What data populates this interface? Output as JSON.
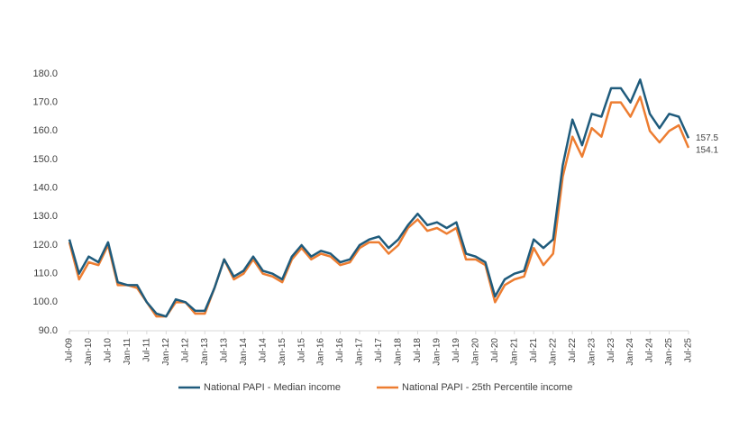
{
  "chart_data": {
    "type": "line",
    "categories": [
      "Jul-09",
      null,
      "Jan-10",
      null,
      "Jul-10",
      null,
      "Jan-11",
      null,
      "Jul-11",
      null,
      "Jan-12",
      null,
      "Jul-12",
      null,
      "Jan-13",
      null,
      "Jul-13",
      null,
      "Jan-14",
      null,
      "Jul-14",
      null,
      "Jan-15",
      null,
      "Jul-15",
      null,
      "Jan-16",
      null,
      "Jul-16",
      null,
      "Jan-17",
      null,
      "Jul-17",
      null,
      "Jan-18",
      null,
      "Jul-18",
      null,
      "Jan-19",
      null,
      "Jul-19",
      null,
      "Jan-20",
      null,
      "Jul-20",
      null,
      "Jan-21",
      null,
      "Jul-21",
      null,
      "Jan-22",
      null,
      "Jul-22",
      null,
      "Jan-23",
      null,
      "Jul-23",
      null,
      "Jan-24",
      null,
      "Jul-24",
      null,
      "Jan-25",
      null,
      "Jul-25"
    ],
    "series": [
      {
        "name": "National PAPI - Median income",
        "color": "#1f5b7c",
        "values": [
          122,
          110,
          116,
          114,
          121,
          107,
          106,
          106,
          100,
          96,
          95,
          101,
          100,
          97,
          97,
          105,
          115,
          109,
          111,
          116,
          111,
          110,
          108,
          116,
          120,
          116,
          118,
          117,
          114,
          115,
          120,
          122,
          123,
          119,
          122,
          127,
          131,
          127,
          128,
          126,
          128,
          117,
          116,
          114,
          102,
          108,
          110,
          111,
          122,
          119,
          122,
          148,
          164,
          155,
          166,
          165,
          175,
          175,
          170,
          178,
          166,
          161,
          166,
          165,
          157.5
        ]
      },
      {
        "name": "National PAPI - 25th Percentile income",
        "color": "#ed7d31",
        "values": [
          121,
          108,
          114,
          113,
          120,
          106,
          106,
          105,
          100,
          95,
          95,
          100,
          100,
          96,
          96,
          105,
          115,
          108,
          110,
          115,
          110,
          109,
          107,
          115,
          119,
          115,
          117,
          116,
          113,
          114,
          119,
          121,
          121,
          117,
          120,
          126,
          129,
          125,
          126,
          124,
          126,
          115,
          115,
          113,
          100,
          106,
          108,
          109,
          119,
          113,
          117,
          144,
          158,
          151,
          161,
          158,
          170,
          170,
          165,
          172,
          160,
          156,
          160,
          162,
          154.1
        ]
      }
    ],
    "ylim": [
      90,
      180
    ],
    "yticks": [
      {
        "value": 90,
        "label": "90.0"
      },
      {
        "value": 100,
        "label": "100.0"
      },
      {
        "value": 110,
        "label": "110.0"
      },
      {
        "value": 120,
        "label": "120.0"
      },
      {
        "value": 130,
        "label": "130.0"
      },
      {
        "value": 140,
        "label": "140.0"
      },
      {
        "value": 150,
        "label": "150.0"
      },
      {
        "value": 160,
        "label": "160.0"
      },
      {
        "value": 170,
        "label": "170.0"
      },
      {
        "value": 180,
        "label": "180.0"
      }
    ],
    "legend": "bottom"
  }
}
